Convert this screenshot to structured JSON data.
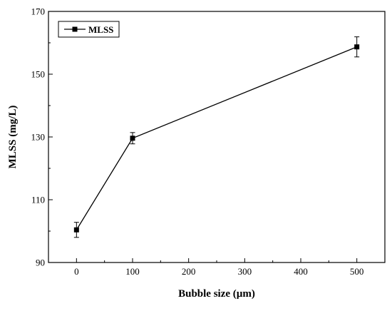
{
  "chart_data": {
    "type": "line",
    "title": "",
    "xlabel": "Bubble size (µm)",
    "ylabel": "MLSS (mg/L)",
    "xlim": [
      -50,
      550
    ],
    "ylim": [
      90,
      170
    ],
    "xticks": [
      0,
      100,
      200,
      300,
      400,
      500
    ],
    "yticks": [
      90,
      110,
      130,
      150,
      170
    ],
    "grid": false,
    "legend_position": "top-left",
    "series": [
      {
        "name": "MLSS",
        "color": "#000000",
        "marker": "square",
        "x": [
          0,
          100,
          500
        ],
        "y": [
          100.4,
          129.6,
          158.7
        ],
        "error": [
          2.4,
          1.8,
          3.2
        ]
      }
    ]
  }
}
